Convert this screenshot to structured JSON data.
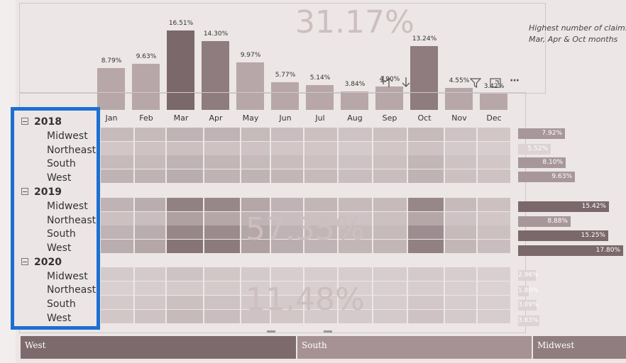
{
  "column_chart": {
    "big_value": "31.17%",
    "note_line1": "Highest number of claims o",
    "note_line2": "Mar, Apr & Oct months",
    "chart_data": {
      "type": "bar",
      "categories": [
        "Jan",
        "Feb",
        "Mar",
        "Apr",
        "May",
        "Jun",
        "Jul",
        "Aug",
        "Sep",
        "Oct",
        "Nov",
        "Dec"
      ],
      "values": [
        8.79,
        9.63,
        16.51,
        14.3,
        9.97,
        5.77,
        5.14,
        3.84,
        4.9,
        13.24,
        4.55,
        3.42
      ],
      "labels": [
        "8.79%",
        "9.63%",
        "16.51%",
        "14.30%",
        "9.97%",
        "5.77%",
        "5.14%",
        "3.84%",
        "4.90%",
        "13.24%",
        "4.55%",
        "3.42%"
      ],
      "ylim": [
        0,
        17
      ]
    }
  },
  "matrix": {
    "big_values": [
      "57.35%",
      "11.48%"
    ],
    "years": [
      {
        "label": "2018",
        "regions": [
          "Midwest",
          "Northeast",
          "South",
          "West"
        ]
      },
      {
        "label": "2019",
        "regions": [
          "Midwest",
          "Northeast",
          "South",
          "West"
        ]
      },
      {
        "label": "2020",
        "regions": [
          "Midwest",
          "Northeast",
          "South",
          "West"
        ]
      }
    ],
    "totals": [
      {
        "value": 7.92,
        "label": "7.92%"
      },
      {
        "value": 5.52,
        "label": "5.52%"
      },
      {
        "value": 8.1,
        "label": "8.10%"
      },
      {
        "value": 9.63,
        "label": "9.63%"
      },
      {
        "value": 15.42,
        "label": "15.42%"
      },
      {
        "value": 8.88,
        "label": "8.88%"
      },
      {
        "value": 15.25,
        "label": "15.25%"
      },
      {
        "value": 17.8,
        "label": "17.80%"
      },
      {
        "value": 2.96,
        "label": "2.96%"
      },
      {
        "value": 1.8,
        "label": "1.80%"
      },
      {
        "value": 3.09,
        "label": "3.09%"
      },
      {
        "value": 3.63,
        "label": "3.63%"
      }
    ],
    "heat_intensity": [
      [
        0.25,
        0.25,
        0.3,
        0.3,
        0.25,
        0.22,
        0.2,
        0.18,
        0.2,
        0.25,
        0.18,
        0.15
      ],
      [
        0.15,
        0.18,
        0.2,
        0.18,
        0.18,
        0.15,
        0.15,
        0.12,
        0.15,
        0.18,
        0.12,
        0.1
      ],
      [
        0.25,
        0.25,
        0.3,
        0.28,
        0.25,
        0.22,
        0.2,
        0.18,
        0.2,
        0.28,
        0.18,
        0.15
      ],
      [
        0.3,
        0.3,
        0.35,
        0.3,
        0.3,
        0.28,
        0.25,
        0.22,
        0.22,
        0.3,
        0.2,
        0.18
      ],
      [
        0.3,
        0.35,
        0.7,
        0.65,
        0.4,
        0.3,
        0.28,
        0.25,
        0.25,
        0.65,
        0.25,
        0.2
      ],
      [
        0.2,
        0.22,
        0.45,
        0.4,
        0.3,
        0.22,
        0.2,
        0.18,
        0.2,
        0.4,
        0.18,
        0.15
      ],
      [
        0.3,
        0.35,
        0.65,
        0.62,
        0.4,
        0.3,
        0.28,
        0.25,
        0.25,
        0.6,
        0.25,
        0.2
      ],
      [
        0.35,
        0.4,
        0.8,
        0.75,
        0.45,
        0.35,
        0.3,
        0.28,
        0.28,
        0.7,
        0.28,
        0.22
      ],
      [
        0.12,
        0.12,
        0.18,
        0.15,
        0.12,
        0.1,
        0.1,
        0.1,
        0.1,
        0.12,
        0.1,
        0.08
      ],
      [
        0.08,
        0.1,
        0.12,
        0.12,
        0.1,
        0.08,
        0.08,
        0.08,
        0.08,
        0.1,
        0.08,
        0.06
      ],
      [
        0.12,
        0.14,
        0.2,
        0.18,
        0.14,
        0.12,
        0.1,
        0.1,
        0.1,
        0.14,
        0.1,
        0.08
      ],
      [
        0.15,
        0.18,
        0.25,
        0.22,
        0.18,
        0.15,
        0.12,
        0.12,
        0.12,
        0.18,
        0.12,
        0.1
      ]
    ]
  },
  "toolbar": {
    "pin_icon": "pin-icon",
    "drill_up_icon": "arrow-up-icon",
    "drill_down_icon": "arrow-down-icon",
    "filter_icon": "filter-icon",
    "focus_icon": "focus-mode-icon",
    "more_icon": "more-options-icon",
    "more_glyph": "···"
  },
  "slicer": {
    "items": [
      {
        "label": "West",
        "color": "#7c6a6c"
      },
      {
        "label": "South",
        "color": "#a69294"
      },
      {
        "label": "Midwest",
        "color": "#8f7d7f"
      }
    ]
  },
  "colors": {
    "bar": "#b8a7a8",
    "bar_dark": "#7a686b",
    "tree_border": "#1d6fd1",
    "heat_base": "#e3d9da",
    "heat_dark": "#6f5b5e"
  }
}
